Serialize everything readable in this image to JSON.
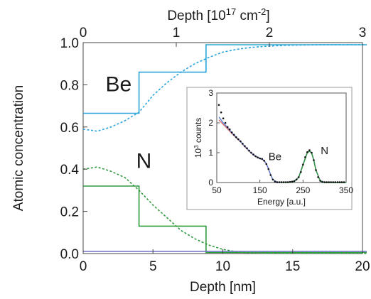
{
  "colors": {
    "be": "#2aa5dc",
    "n": "#2e9a3e",
    "flat": "#6f74c8",
    "inset_data": "#111111",
    "inset_fit_red": "#d86b6b",
    "inset_fit_blue": "#5d7fd6"
  },
  "chart_data": {
    "type": "line",
    "main": {
      "xlabel": "Depth [nm]",
      "ylabel": "Atomic concentration",
      "top_xlabel_parts": [
        "Depth [10",
        "17",
        " cm",
        "-2",
        "]"
      ],
      "xlim": [
        0,
        20
      ],
      "ylim": [
        0,
        1.0
      ],
      "xticks": [
        "0",
        "5",
        "10",
        "15",
        "20"
      ],
      "yticks": [
        "0.0",
        "0.2",
        "0.4",
        "0.6",
        "0.8",
        "1.0"
      ],
      "top_xlim": [
        0,
        3
      ],
      "top_xticks": [
        "0",
        "1",
        "2",
        "3"
      ],
      "labels": [
        {
          "text": "Be",
          "x": 1.6,
          "y": 0.77
        },
        {
          "text": "N",
          "x": 3.8,
          "y": 0.405
        }
      ],
      "series": [
        {
          "key": "be_step",
          "style": "solid",
          "color_key": "be",
          "x": [
            0,
            4.0,
            4.0,
            8.8,
            8.8,
            20.3
          ],
          "y": [
            0.665,
            0.665,
            0.86,
            0.86,
            0.99,
            0.99
          ]
        },
        {
          "key": "be_profile",
          "style": "dashed",
          "color_key": "be",
          "x": [
            0,
            1,
            2,
            3,
            4,
            5,
            6,
            7,
            8,
            9,
            10,
            11,
            12,
            13,
            14,
            15,
            16,
            17,
            18,
            20.3
          ],
          "y": [
            0.59,
            0.58,
            0.6,
            0.63,
            0.67,
            0.75,
            0.81,
            0.86,
            0.9,
            0.93,
            0.955,
            0.968,
            0.977,
            0.982,
            0.986,
            0.988,
            0.989,
            0.99,
            0.99,
            0.99
          ]
        },
        {
          "key": "n_step",
          "style": "solid",
          "color_key": "n",
          "x": [
            0,
            4.0,
            4.0,
            8.8,
            8.8,
            20.3
          ],
          "y": [
            0.32,
            0.32,
            0.13,
            0.13,
            0.005,
            0.005
          ]
        },
        {
          "key": "n_profile",
          "style": "dashed",
          "color_key": "n",
          "x": [
            0,
            1,
            2,
            3,
            4,
            5,
            6,
            7,
            8,
            9,
            10,
            11,
            12,
            13,
            14,
            20.3
          ],
          "y": [
            0.4,
            0.41,
            0.39,
            0.36,
            0.3,
            0.23,
            0.17,
            0.11,
            0.07,
            0.04,
            0.02,
            0.008,
            0.003,
            0.001,
            0.0,
            0.0
          ]
        },
        {
          "key": "flat_line",
          "style": "solid",
          "color_key": "flat",
          "x": [
            0,
            20.3
          ],
          "y": [
            0.01,
            0.01
          ]
        }
      ]
    },
    "inset": {
      "xlabel": "Energy [a.u.]",
      "ylabel_parts": [
        "10",
        "3",
        " counts"
      ],
      "xlim": [
        50,
        350
      ],
      "ylim": [
        0,
        3
      ],
      "xticks": [
        "50",
        "150",
        "250",
        "350"
      ],
      "yticks": [
        "0",
        "1",
        "2",
        "3"
      ],
      "labels": [
        {
          "text": "Be",
          "x": 185,
          "y": 0.75
        },
        {
          "text": "N",
          "x": 300,
          "y": 0.95
        }
      ],
      "data_points": {
        "x": [
          55,
          60,
          65,
          70,
          75,
          80,
          85,
          90,
          95,
          100,
          105,
          110,
          115,
          120,
          125,
          130,
          135,
          140,
          145,
          150,
          155,
          160,
          165,
          170,
          175,
          180,
          185,
          190,
          195,
          200,
          205,
          210,
          215,
          220,
          225,
          230,
          235,
          240,
          245,
          250,
          255,
          260,
          265,
          270,
          275,
          280,
          285,
          290,
          295,
          300,
          305,
          310,
          315,
          320,
          325,
          330,
          335,
          340,
          345
        ],
        "y": [
          2.6,
          2.35,
          2.15,
          2.0,
          1.86,
          1.78,
          1.68,
          1.6,
          1.52,
          1.45,
          1.38,
          1.3,
          1.22,
          1.15,
          1.07,
          1.0,
          0.94,
          0.88,
          0.84,
          0.81,
          0.79,
          0.73,
          0.62,
          0.45,
          0.25,
          0.1,
          0.03,
          0.01,
          0.01,
          0.01,
          0.01,
          0.01,
          0.01,
          0.02,
          0.03,
          0.05,
          0.1,
          0.18,
          0.35,
          0.6,
          0.85,
          1.02,
          1.08,
          1.0,
          0.75,
          0.42,
          0.18,
          0.06,
          0.02,
          0.01,
          0.01,
          0.01,
          0.01,
          0.01,
          0.01,
          0.01,
          0.01,
          0.01,
          0.01
        ]
      },
      "fits": [
        {
          "key": "fit_red",
          "color_key": "inset_fit_red",
          "x": [
            55,
            65,
            75,
            85,
            95,
            105,
            115,
            125,
            135,
            145,
            155,
            160,
            165,
            170,
            175,
            180,
            190,
            200,
            220,
            230,
            240,
            250,
            260,
            265,
            270,
            275,
            280,
            290,
            300,
            350
          ],
          "y": [
            2.1,
            1.95,
            1.8,
            1.64,
            1.5,
            1.37,
            1.2,
            1.05,
            0.92,
            0.83,
            0.78,
            0.72,
            0.62,
            0.45,
            0.25,
            0.1,
            0.01,
            0.01,
            0.02,
            0.05,
            0.18,
            0.6,
            1.02,
            1.06,
            1.0,
            0.75,
            0.42,
            0.06,
            0.01,
            0.01
          ]
        },
        {
          "key": "fit_blue",
          "color_key": "inset_fit_blue",
          "x": [
            55,
            65,
            75,
            85,
            95,
            105,
            115,
            125,
            135,
            145,
            155,
            160,
            165,
            170,
            175,
            180,
            190,
            200,
            220,
            230,
            240,
            250,
            260,
            265,
            270,
            275,
            280,
            290,
            300,
            350
          ],
          "y": [
            2.2,
            2.0,
            1.85,
            1.67,
            1.52,
            1.38,
            1.22,
            1.06,
            0.93,
            0.84,
            0.79,
            0.73,
            0.63,
            0.46,
            0.26,
            0.1,
            0.01,
            0.01,
            0.02,
            0.05,
            0.18,
            0.6,
            1.02,
            1.06,
            1.0,
            0.75,
            0.42,
            0.06,
            0.01,
            0.01
          ]
        },
        {
          "key": "fit_green",
          "color_key": "n",
          "x": [
            200,
            220,
            230,
            240,
            250,
            260,
            265,
            270,
            275,
            280,
            290,
            300,
            350
          ],
          "y": [
            0.0,
            0.01,
            0.04,
            0.17,
            0.58,
            1.0,
            1.05,
            0.99,
            0.74,
            0.41,
            0.05,
            0.0,
            0.0
          ]
        }
      ]
    }
  }
}
